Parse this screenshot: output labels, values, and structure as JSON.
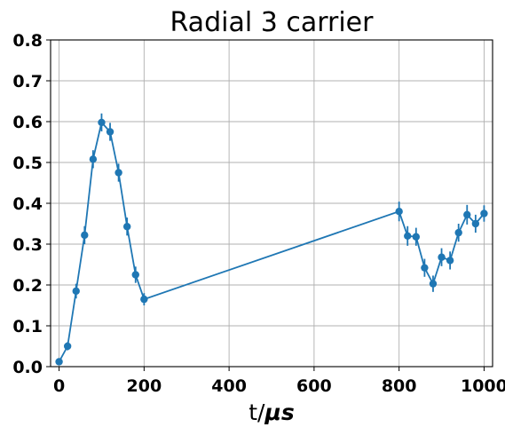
{
  "chart_data": {
    "type": "line",
    "title": "Radial 3 carrier",
    "xlabel": "t/",
    "xlabel_unit": "μs",
    "ylabel": "",
    "xlim": [
      -20,
      1020
    ],
    "ylim": [
      0,
      0.8
    ],
    "xticks": [
      0,
      200,
      400,
      600,
      800,
      1000
    ],
    "yticks": [
      0.0,
      0.1,
      0.2,
      0.3,
      0.4,
      0.5,
      0.6,
      0.7,
      0.8
    ],
    "xtick_labels": [
      "0",
      "200",
      "400",
      "600",
      "800",
      "1000"
    ],
    "ytick_labels": [
      "0.0",
      "0.1",
      "0.2",
      "0.3",
      "0.4",
      "0.5",
      "0.6",
      "0.7",
      "0.8"
    ],
    "grid": true,
    "color": "#1f77b4",
    "series": [
      {
        "marker": "circle",
        "x": [
          0,
          20,
          40,
          60,
          80,
          100,
          120,
          140,
          160,
          180,
          200,
          800,
          820,
          840,
          860,
          880,
          900,
          920,
          940,
          960,
          980,
          1000
        ],
        "y": [
          0.012,
          0.05,
          0.185,
          0.322,
          0.508,
          0.598,
          0.575,
          0.475,
          0.343,
          0.225,
          0.165,
          0.38,
          0.32,
          0.318,
          0.242,
          0.203,
          0.268,
          0.26,
          0.328,
          0.372,
          0.35,
          0.375
        ],
        "yerr": [
          0.008,
          0.01,
          0.018,
          0.022,
          0.022,
          0.022,
          0.022,
          0.022,
          0.022,
          0.02,
          0.015,
          0.024,
          0.024,
          0.022,
          0.022,
          0.02,
          0.022,
          0.022,
          0.022,
          0.024,
          0.022,
          0.02
        ]
      }
    ]
  }
}
